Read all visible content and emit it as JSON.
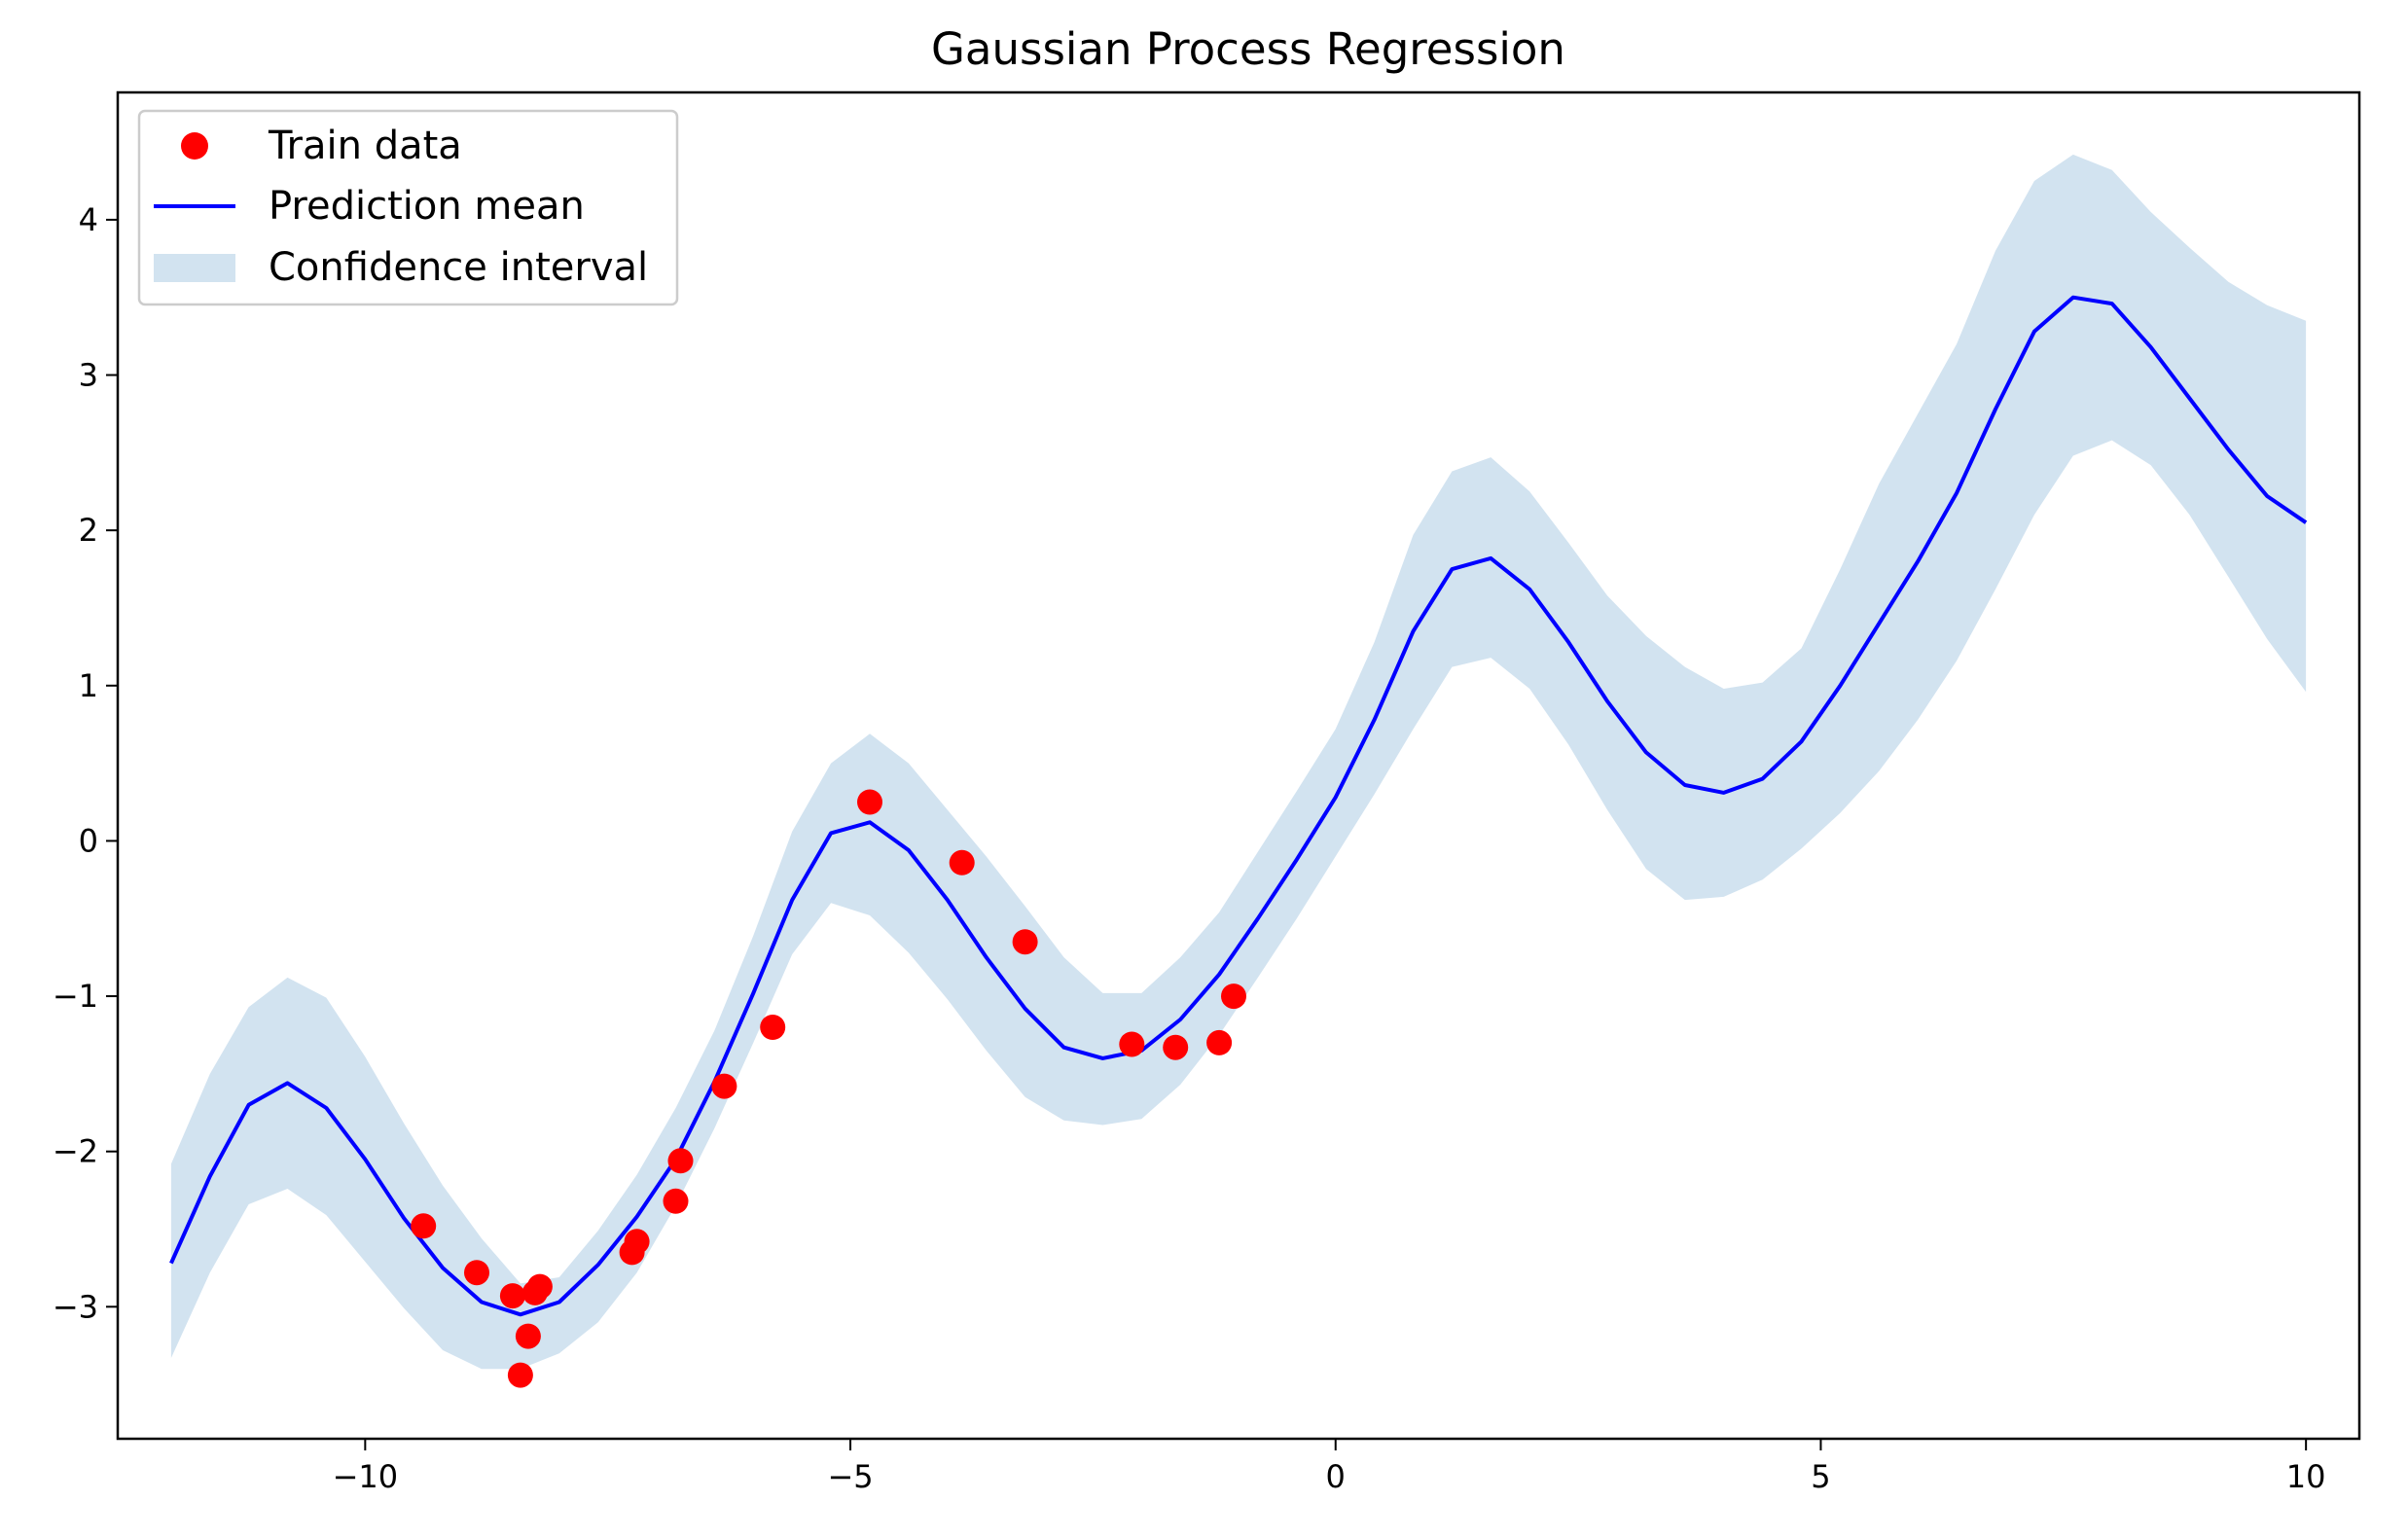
{
  "chart_data": {
    "type": "line",
    "title": "Gaussian Process Regression",
    "xlabel": "",
    "ylabel": "",
    "xlim": [
      -12.55,
      10.55
    ],
    "ylim": [
      -3.85,
      4.82
    ],
    "xticks": [
      -10,
      -5,
      0,
      5,
      10
    ],
    "xtick_labels": [
      "−10",
      "−5",
      "0",
      "5",
      "10"
    ],
    "yticks": [
      -3,
      -2,
      -1,
      0,
      1,
      2,
      3,
      4
    ],
    "ytick_labels": [
      "−3",
      "−2",
      "−1",
      "0",
      "1",
      "2",
      "3",
      "4"
    ],
    "grid": false,
    "legend": {
      "position": "top-left",
      "entries": [
        "Train data",
        "Prediction mean",
        "Confidence interval"
      ]
    },
    "colors": {
      "train": "#ff0000",
      "mean": "#0000ff",
      "band": "#d2e3f0"
    },
    "series": [
      {
        "name": "Train data",
        "kind": "scatter",
        "points": [
          [
            -9.4,
            -2.48
          ],
          [
            -8.85,
            -2.78
          ],
          [
            -8.48,
            -2.93
          ],
          [
            -8.4,
            -3.44
          ],
          [
            -8.32,
            -3.19
          ],
          [
            -8.25,
            -2.91
          ],
          [
            -8.2,
            -2.87
          ],
          [
            -7.25,
            -2.65
          ],
          [
            -7.2,
            -2.58
          ],
          [
            -6.8,
            -2.32
          ],
          [
            -6.75,
            -2.06
          ],
          [
            -6.3,
            -1.58
          ],
          [
            -5.8,
            -1.2
          ],
          [
            -4.8,
            0.25
          ],
          [
            -3.85,
            -0.14
          ],
          [
            -3.2,
            -0.65
          ],
          [
            -2.1,
            -1.31
          ],
          [
            -1.65,
            -1.33
          ],
          [
            -1.2,
            -1.3
          ],
          [
            -1.05,
            -1.0
          ]
        ]
      },
      {
        "name": "Prediction mean",
        "kind": "line",
        "x": [
          -12.0,
          -11.6,
          -11.2,
          -10.8,
          -10.4,
          -10.0,
          -9.6,
          -9.2,
          -8.8,
          -8.4,
          -8.0,
          -7.6,
          -7.2,
          -6.8,
          -6.4,
          -6.0,
          -5.6,
          -5.2,
          -4.8,
          -4.4,
          -4.0,
          -3.6,
          -3.2,
          -2.8,
          -2.4,
          -2.0,
          -1.6,
          -1.2,
          -0.8,
          -0.4,
          0.0,
          0.4,
          0.8,
          1.2,
          1.6,
          2.0,
          2.4,
          2.8,
          3.2,
          3.6,
          4.0,
          4.4,
          4.8,
          5.2,
          5.6,
          6.0,
          6.4,
          6.8,
          7.2,
          7.6,
          8.0,
          8.4,
          8.8,
          9.2,
          9.6,
          10.0
        ],
        "y": [
          -2.72,
          -2.16,
          -1.7,
          -1.56,
          -1.72,
          -2.05,
          -2.43,
          -2.75,
          -2.97,
          -3.05,
          -2.97,
          -2.73,
          -2.42,
          -2.05,
          -1.55,
          -0.98,
          -0.38,
          0.05,
          0.12,
          -0.06,
          -0.38,
          -0.75,
          -1.08,
          -1.33,
          -1.4,
          -1.35,
          -1.15,
          -0.86,
          -0.5,
          -0.12,
          0.28,
          0.78,
          1.35,
          1.75,
          1.82,
          1.62,
          1.28,
          0.9,
          0.57,
          0.36,
          0.31,
          0.4,
          0.64,
          1.0,
          1.4,
          1.8,
          2.24,
          2.78,
          3.28,
          3.5,
          3.46,
          3.18,
          2.85,
          2.52,
          2.22,
          2.05
        ],
        "lower": [
          -3.33,
          -2.78,
          -2.34,
          -2.24,
          -2.41,
          -2.71,
          -3.01,
          -3.28,
          -3.4,
          -3.4,
          -3.3,
          -3.1,
          -2.78,
          -2.35,
          -1.85,
          -1.3,
          -0.73,
          -0.4,
          -0.48,
          -0.72,
          -1.02,
          -1.35,
          -1.65,
          -1.8,
          -1.83,
          -1.79,
          -1.57,
          -1.25,
          -0.88,
          -0.5,
          -0.1,
          0.3,
          0.72,
          1.12,
          1.18,
          0.98,
          0.62,
          0.2,
          -0.18,
          -0.38,
          -0.36,
          -0.25,
          -0.05,
          0.18,
          0.45,
          0.78,
          1.16,
          1.62,
          2.1,
          2.48,
          2.58,
          2.42,
          2.1,
          1.7,
          1.3,
          0.96
        ],
        "upper": [
          -2.08,
          -1.5,
          -1.07,
          -0.88,
          -1.01,
          -1.39,
          -1.82,
          -2.22,
          -2.56,
          -2.85,
          -2.81,
          -2.51,
          -2.15,
          -1.72,
          -1.22,
          -0.61,
          0.06,
          0.5,
          0.69,
          0.5,
          0.2,
          -0.1,
          -0.42,
          -0.75,
          -0.98,
          -0.98,
          -0.75,
          -0.46,
          -0.07,
          0.32,
          0.72,
          1.28,
          1.97,
          2.38,
          2.47,
          2.25,
          1.92,
          1.58,
          1.32,
          1.12,
          0.98,
          1.02,
          1.24,
          1.75,
          2.3,
          2.75,
          3.2,
          3.8,
          4.25,
          4.42,
          4.32,
          4.05,
          3.82,
          3.6,
          3.45,
          3.35
        ]
      }
    ]
  }
}
